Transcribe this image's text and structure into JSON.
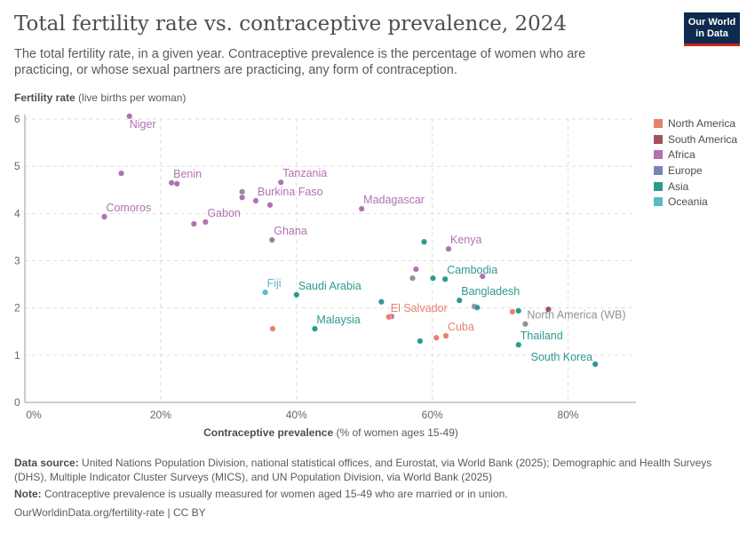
{
  "header": {
    "title": "Total fertility rate vs. contraceptive prevalence, 2024",
    "subtitle": "The total fertility rate, in a given year. Contraceptive prevalence is the percentage of women who are practicing, or whose sexual partners are practicing, any form of contraception.",
    "logo": "Our World in Data"
  },
  "chart_data": {
    "type": "scatter",
    "title": "Total fertility rate vs. contraceptive prevalence, 2024",
    "ylabel_bold": "Fertility rate",
    "ylabel_rest": " (live births per woman)",
    "xlabel_bold": "Contraceptive prevalence",
    "xlabel_rest": " (% of women ages 15-49)",
    "xlim": [
      0,
      90
    ],
    "ylim": [
      0,
      6
    ],
    "xticks": [
      "0%",
      "20%",
      "40%",
      "60%",
      "80%"
    ],
    "xtick_values": [
      0,
      20,
      40,
      60,
      80
    ],
    "yticks": [
      "0",
      "1",
      "2",
      "3",
      "4",
      "5",
      "6"
    ],
    "ytick_values": [
      0,
      1,
      2,
      3,
      4,
      5,
      6
    ],
    "grid": true,
    "legend_position": "right",
    "groups": [
      {
        "name": "North America",
        "color": "#E8806E"
      },
      {
        "name": "South America",
        "color": "#A2525F"
      },
      {
        "name": "Africa",
        "color": "#B073B0"
      },
      {
        "name": "Europe",
        "color": "#7387B3"
      },
      {
        "name": "Asia",
        "color": "#2C9A8F"
      },
      {
        "name": "Oceania",
        "color": "#5BBAC6"
      }
    ],
    "other_color": "#8D929B",
    "points": [
      {
        "label": "Niger",
        "x": 15.4,
        "y": 6.06,
        "group": "Africa",
        "label_position": "below"
      },
      {
        "label": "",
        "x": 14.2,
        "y": 4.85,
        "group": "Africa"
      },
      {
        "label": "Benin",
        "x": 21.6,
        "y": 4.65,
        "group": "Africa"
      },
      {
        "label": "",
        "x": 22.4,
        "y": 4.63,
        "group": "Africa"
      },
      {
        "label": "Tanzania",
        "x": 37.7,
        "y": 4.66,
        "group": "Africa"
      },
      {
        "label": "",
        "x": 32.0,
        "y": 4.46,
        "group": null
      },
      {
        "label": "",
        "x": 32.0,
        "y": 4.34,
        "group": "Africa"
      },
      {
        "label": "Burkina Faso",
        "x": 34.0,
        "y": 4.27,
        "group": "Africa"
      },
      {
        "label": "",
        "x": 36.1,
        "y": 4.18,
        "group": "Africa"
      },
      {
        "label": "Comoros",
        "x": 11.7,
        "y": 3.93,
        "group": "Africa"
      },
      {
        "label": "",
        "x": 24.9,
        "y": 3.78,
        "group": "Africa"
      },
      {
        "label": "Gabon",
        "x": 26.6,
        "y": 3.82,
        "group": "Africa"
      },
      {
        "label": "Ghana",
        "x": 36.4,
        "y": 3.44,
        "group": "Africa"
      },
      {
        "label": "Madagascar",
        "x": 49.6,
        "y": 4.1,
        "group": "Africa"
      },
      {
        "label": "",
        "x": 58.8,
        "y": 3.4,
        "group": "Asia"
      },
      {
        "label": "Kenya",
        "x": 62.4,
        "y": 3.25,
        "group": "Africa"
      },
      {
        "label": "",
        "x": 57.6,
        "y": 2.82,
        "group": "Africa"
      },
      {
        "label": "",
        "x": 57.1,
        "y": 2.63,
        "group": null
      },
      {
        "label": "",
        "x": 60.1,
        "y": 2.63,
        "group": "Asia"
      },
      {
        "label": "",
        "x": 67.4,
        "y": 2.67,
        "group": "Africa"
      },
      {
        "label": "Cambodia",
        "x": 61.9,
        "y": 2.61,
        "group": "Asia"
      },
      {
        "label": "Fiji",
        "x": 35.4,
        "y": 2.33,
        "group": "Oceania"
      },
      {
        "label": "Saudi Arabia",
        "x": 40.0,
        "y": 2.28,
        "group": "Asia"
      },
      {
        "label": "",
        "x": 52.5,
        "y": 2.13,
        "group": "Asia"
      },
      {
        "label": "Bangladesh",
        "x": 64.0,
        "y": 2.16,
        "group": "Asia"
      },
      {
        "label": "",
        "x": 66.2,
        "y": 2.03,
        "group": null
      },
      {
        "label": "",
        "x": 66.6,
        "y": 2.01,
        "group": "Asia"
      },
      {
        "label": "",
        "x": 71.8,
        "y": 1.92,
        "group": "North America"
      },
      {
        "label": "",
        "x": 72.7,
        "y": 1.94,
        "group": "Asia"
      },
      {
        "label": "",
        "x": 77.1,
        "y": 1.97,
        "group": "South America"
      },
      {
        "label": "",
        "x": 54.0,
        "y": 1.82,
        "group": "Africa"
      },
      {
        "label": "El Salvador",
        "x": 53.6,
        "y": 1.81,
        "group": "North America"
      },
      {
        "label": "North America (WB)",
        "x": 73.7,
        "y": 1.66,
        "group": null
      },
      {
        "label": "",
        "x": 36.5,
        "y": 1.56,
        "group": "North America"
      },
      {
        "label": "Malaysia",
        "x": 42.7,
        "y": 1.56,
        "group": "Asia"
      },
      {
        "label": "",
        "x": 60.6,
        "y": 1.37,
        "group": "North America"
      },
      {
        "label": "Cuba",
        "x": 62.0,
        "y": 1.41,
        "group": "North America"
      },
      {
        "label": "",
        "x": 58.2,
        "y": 1.3,
        "group": "Asia"
      },
      {
        "label": "Thailand",
        "x": 72.7,
        "y": 1.22,
        "group": "Asia"
      },
      {
        "label": "South Korea",
        "x": 84.0,
        "y": 0.81,
        "group": "Asia",
        "label_position": "left"
      }
    ]
  },
  "footer": {
    "source_label": "Data source:",
    "source": " United Nations Population Division, national statistical offices, and Eurostat, via World Bank (2025); Demographic and Health Surveys (DHS), Multiple Indicator Cluster Surveys (MICS), and UN Population Division, via World Bank (2025)",
    "note_label": "Note:",
    "note": " Contraceptive prevalence is usually measured for women aged 15-49 who are married or in union.",
    "url": "OurWorldinData.org/fertility-rate | CC BY"
  }
}
